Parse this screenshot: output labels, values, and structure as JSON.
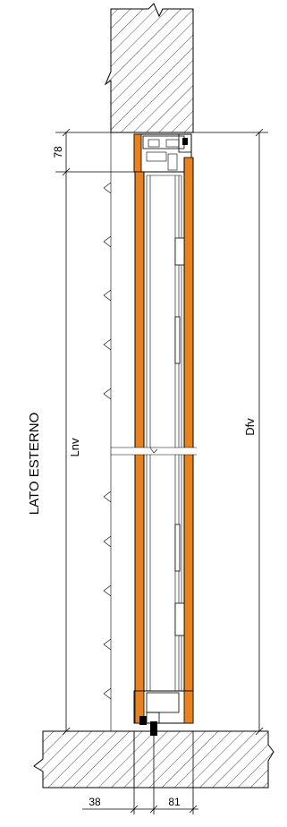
{
  "labels": {
    "side": "LATO ESTERNO",
    "lnv": "Lnv",
    "dfv": "Dfv",
    "dim_top": "78",
    "dim_bottom_left": "38",
    "dim_bottom_right": "81"
  },
  "colors": {
    "frame": "#e8821e",
    "line": "#000000",
    "background": "#ffffff"
  }
}
